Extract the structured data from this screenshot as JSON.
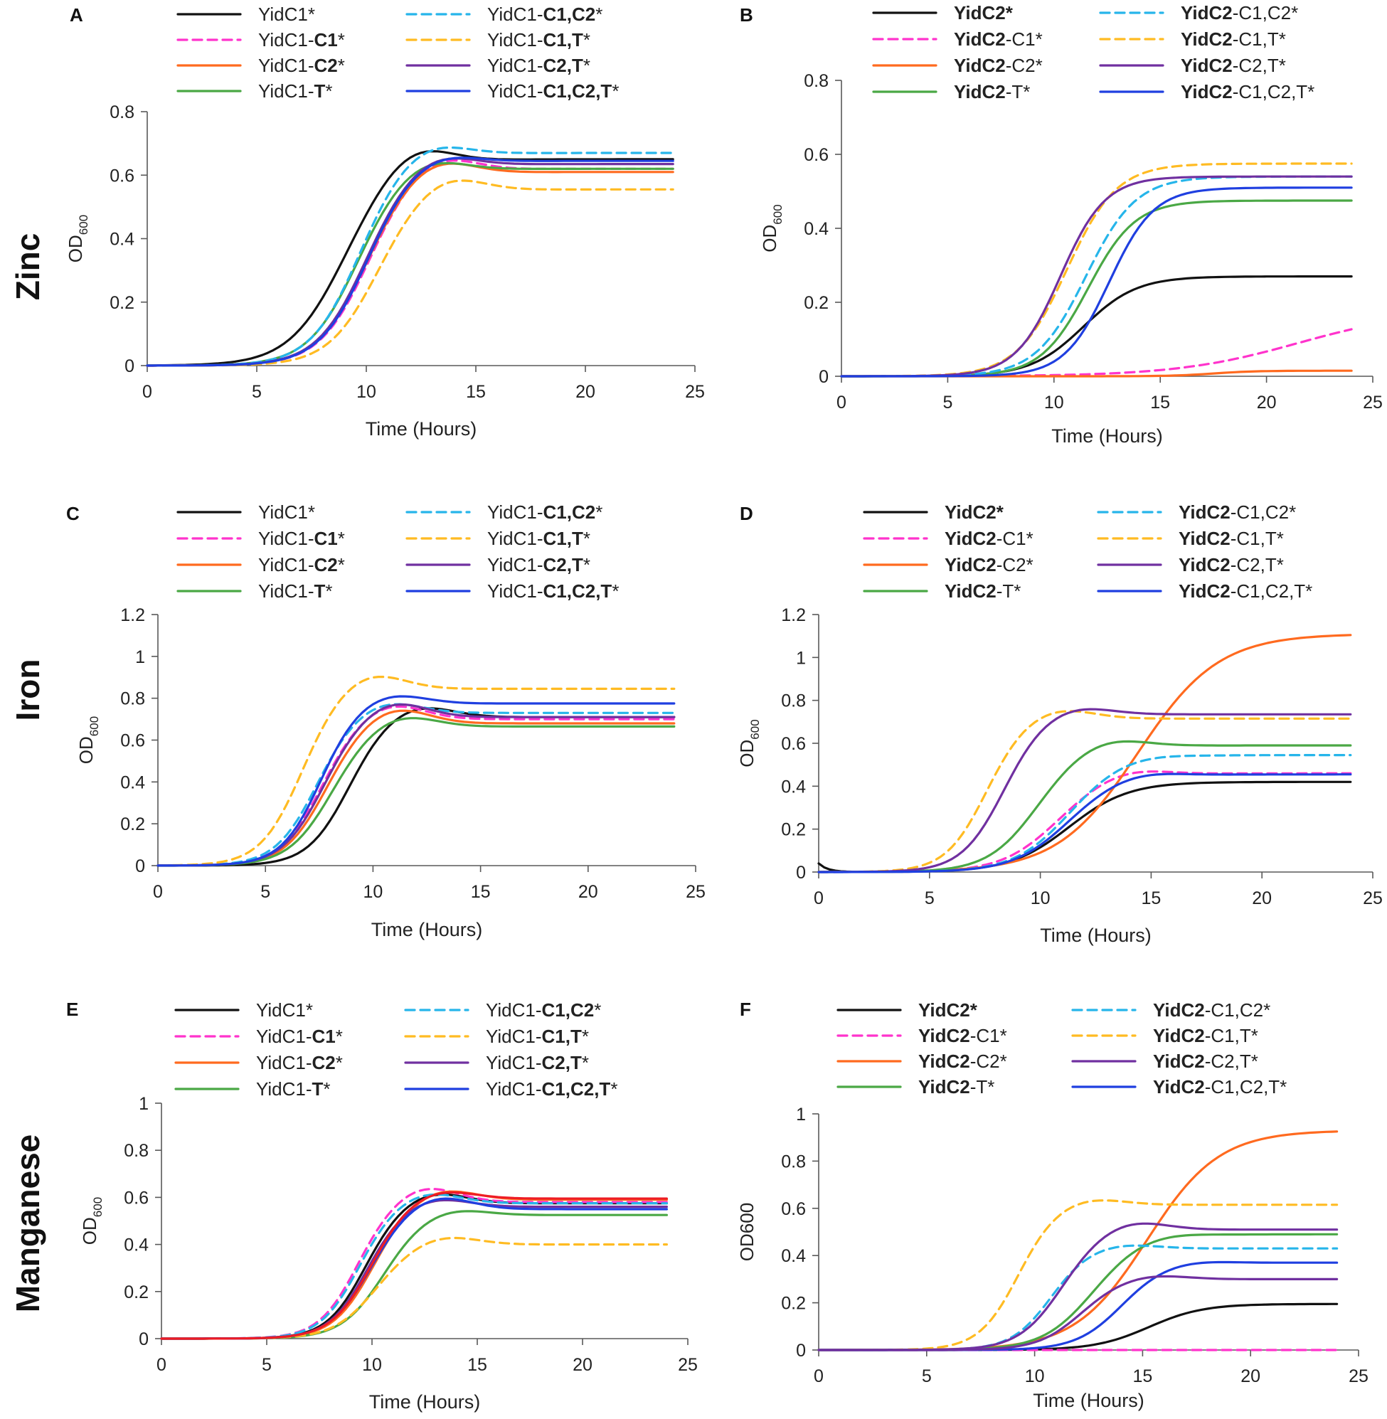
{
  "colors": {
    "black": "#111111",
    "magenta": "#ff33cc",
    "orange": "#ff6a1f",
    "green": "#4aa845",
    "cyan": "#26b5ea",
    "yellow": "#ffbb22",
    "purple": "#7030a0",
    "blue": "#1f3fe0",
    "red": "#ee1c25"
  },
  "rows": [
    {
      "label": "Zinc"
    },
    {
      "label": "Iron"
    },
    {
      "label": "Manganese"
    }
  ],
  "chart_data": [
    {
      "panel": "A",
      "row": "Zinc",
      "type": "line",
      "xlabel": "Time  (Hours)",
      "ylabel": "OD",
      "ylabel_sub": "600",
      "xlim": [
        0,
        25
      ],
      "ylim": [
        0,
        0.8
      ],
      "xticks": [
        0,
        5,
        10,
        15,
        20,
        25
      ],
      "yticks": [
        0,
        0.2,
        0.4,
        0.6,
        0.8
      ],
      "series": [
        {
          "name": "YidC1*",
          "pre": "YidC1*",
          "bold": "",
          "post": "",
          "color": "black",
          "dashed": false,
          "L": 0.65,
          "k": 0.8,
          "t0": 8.9,
          "peak": 0.06,
          "drift": 0
        },
        {
          "name": "YidC1-C1*",
          "pre": "YidC1-",
          "bold": "C1",
          "post": "*",
          "color": "magenta",
          "dashed": true,
          "L": 0.62,
          "k": 0.9,
          "t0": 10.0,
          "peak": 0.05,
          "drift": 0
        },
        {
          "name": "YidC1-C2*",
          "pre": "YidC1-",
          "bold": "C2",
          "post": "*",
          "color": "orange",
          "dashed": false,
          "L": 0.61,
          "k": 0.9,
          "t0": 9.9,
          "peak": 0.05,
          "drift": 0
        },
        {
          "name": "YidC1-T*",
          "pre": "YidC1-",
          "bold": "T",
          "post": "*",
          "color": "green",
          "dashed": false,
          "L": 0.62,
          "k": 0.9,
          "t0": 9.5,
          "peak": 0.04,
          "drift": 0
        },
        {
          "name": "YidC1-C1,C2*",
          "pre": "YidC1-",
          "bold": "C1,C2",
          "post": "*",
          "color": "cyan",
          "dashed": true,
          "L": 0.67,
          "k": 0.9,
          "t0": 9.6,
          "peak": 0.04,
          "drift": 0
        },
        {
          "name": "YidC1-C1,T*",
          "pre": "YidC1-",
          "bold": "C1,T",
          "post": "*",
          "color": "yellow",
          "dashed": true,
          "L": 0.555,
          "k": 0.9,
          "t0": 10.4,
          "peak": 0.05,
          "drift": 0
        },
        {
          "name": "YidC1-C2,T*",
          "pre": "YidC1-",
          "bold": "C2,T",
          "post": "*",
          "color": "purple",
          "dashed": false,
          "L": 0.635,
          "k": 0.9,
          "t0": 9.9,
          "peak": 0.04,
          "drift": 0
        },
        {
          "name": "YidC1-C1,C2,T*",
          "pre": "YidC1-",
          "bold": "C1,C2,T",
          "post": "*",
          "color": "blue",
          "dashed": false,
          "L": 0.645,
          "k": 0.9,
          "t0": 10.0,
          "peak": 0.03,
          "drift": 0
        }
      ]
    },
    {
      "panel": "B",
      "row": "Zinc",
      "type": "line",
      "xlabel": "Time  (Hours)",
      "ylabel": "OD",
      "ylabel_sub": "600",
      "xlim": [
        0,
        25
      ],
      "ylim": [
        0,
        0.8
      ],
      "xticks": [
        0,
        5,
        10,
        15,
        20,
        25
      ],
      "yticks": [
        0,
        0.2,
        0.4,
        0.6,
        0.8
      ],
      "series": [
        {
          "name": "YidC2*",
          "pre": "",
          "bold": "YidC2*",
          "post": "",
          "color": "black",
          "dashed": false,
          "L": 0.27,
          "k": 0.8,
          "t0": 11.4,
          "peak": 0,
          "drift": 0
        },
        {
          "name": "YidC2-C1*",
          "pre": "",
          "bold": "YidC2",
          "post": "-C1*",
          "color": "magenta",
          "dashed": true,
          "L": 0.18,
          "k": 0.35,
          "t0": 21.5,
          "peak": 0,
          "drift": 0
        },
        {
          "name": "YidC2-C2*",
          "pre": "",
          "bold": "YidC2",
          "post": "-C2*",
          "color": "orange",
          "dashed": false,
          "L": 0.015,
          "k": 1.0,
          "t0": 17.5,
          "peak": 0,
          "drift": 0
        },
        {
          "name": "YidC2-T*",
          "pre": "",
          "bold": "YidC2",
          "post": "-T*",
          "color": "green",
          "dashed": false,
          "L": 0.475,
          "k": 0.9,
          "t0": 11.6,
          "peak": 0,
          "drift": 0
        },
        {
          "name": "YidC2-C1,C2*",
          "pre": "",
          "bold": "YidC2",
          "post": "-C1,C2*",
          "color": "cyan",
          "dashed": true,
          "L": 0.54,
          "k": 0.85,
          "t0": 11.5,
          "peak": 0,
          "drift": 0
        },
        {
          "name": "YidC2-C1,T*",
          "pre": "",
          "bold": "YidC2",
          "post": "-C1,T*",
          "color": "yellow",
          "dashed": true,
          "L": 0.575,
          "k": 0.85,
          "t0": 10.6,
          "peak": 0,
          "drift": 0
        },
        {
          "name": "YidC2-C2,T*",
          "pre": "",
          "bold": "YidC2",
          "post": "-C2,T*",
          "color": "purple",
          "dashed": false,
          "L": 0.54,
          "k": 0.95,
          "t0": 10.3,
          "peak": 0,
          "drift": 0
        },
        {
          "name": "YidC2-C1,C2,T*",
          "pre": "",
          "bold": "YidC2",
          "post": "-C1,C2,T*",
          "color": "blue",
          "dashed": false,
          "L": 0.51,
          "k": 0.95,
          "t0": 12.6,
          "peak": 0,
          "drift": 0
        }
      ]
    },
    {
      "panel": "C",
      "row": "Iron",
      "type": "line",
      "xlabel": "Time  (Hours)",
      "ylabel": "OD",
      "ylabel_sub": "600",
      "xlim": [
        0,
        25
      ],
      "ylim": [
        0,
        1.2
      ],
      "xticks": [
        0,
        5,
        10,
        15,
        20,
        25
      ],
      "yticks": [
        0,
        0.2,
        0.4,
        0.6,
        0.8,
        1,
        1.2
      ],
      "series": [
        {
          "name": "YidC1*",
          "pre": "YidC1*",
          "bold": "",
          "post": "",
          "color": "black",
          "dashed": false,
          "L": 0.71,
          "k": 1.05,
          "t0": 8.8,
          "peak": 0.06,
          "drift": 0
        },
        {
          "name": "YidC1-C1*",
          "pre": "YidC1-",
          "bold": "C1",
          "post": "*",
          "color": "magenta",
          "dashed": true,
          "L": 0.7,
          "k": 1.05,
          "t0": 7.5,
          "peak": 0.08,
          "drift": 0
        },
        {
          "name": "YidC1-C2*",
          "pre": "YidC1-",
          "bold": "C2",
          "post": "*",
          "color": "orange",
          "dashed": false,
          "L": 0.68,
          "k": 1.05,
          "t0": 7.7,
          "peak": 0.08,
          "drift": 0
        },
        {
          "name": "YidC1-T*",
          "pre": "YidC1-",
          "bold": "T",
          "post": "*",
          "color": "green",
          "dashed": false,
          "L": 0.665,
          "k": 1.0,
          "t0": 8.0,
          "peak": 0.06,
          "drift": 0
        },
        {
          "name": "YidC1-C1,C2*",
          "pre": "YidC1-",
          "bold": "C1,C2",
          "post": "*",
          "color": "cyan",
          "dashed": true,
          "L": 0.73,
          "k": 1.05,
          "t0": 7.3,
          "peak": 0.06,
          "drift": 0
        },
        {
          "name": "YidC1-C1,T*",
          "pre": "YidC1-",
          "bold": "C1,T",
          "post": "*",
          "color": "yellow",
          "dashed": true,
          "L": 0.845,
          "k": 1.05,
          "t0": 6.6,
          "peak": 0.08,
          "drift": 0
        },
        {
          "name": "YidC1-C2,T*",
          "pre": "YidC1-",
          "bold": "C2,T",
          "post": "*",
          "color": "purple",
          "dashed": false,
          "L": 0.71,
          "k": 1.05,
          "t0": 7.6,
          "peak": 0.08,
          "drift": 0
        },
        {
          "name": "YidC1-C1,C2,T*",
          "pre": "YidC1-",
          "bold": "C1,C2,T",
          "post": "*",
          "color": "blue",
          "dashed": false,
          "L": 0.775,
          "k": 1.1,
          "t0": 7.5,
          "peak": 0.05,
          "drift": 0
        }
      ]
    },
    {
      "panel": "D",
      "row": "Iron",
      "type": "line",
      "xlabel": "Time  (Hours)",
      "ylabel": "OD",
      "ylabel_sub": "600",
      "xlim": [
        0,
        25
      ],
      "ylim": [
        0,
        1.2
      ],
      "xticks": [
        0,
        5,
        10,
        15,
        20,
        25
      ],
      "yticks": [
        0,
        0.2,
        0.4,
        0.6,
        0.8,
        1,
        1.2
      ],
      "series": [
        {
          "name": "YidC2*",
          "pre": "",
          "bold": "YidC2*",
          "post": "",
          "color": "black",
          "dashed": false,
          "L": 0.42,
          "k": 0.75,
          "t0": 11.3,
          "peak": 0,
          "drift": 0,
          "start": 0.04
        },
        {
          "name": "YidC2-C1*",
          "pre": "",
          "bold": "YidC2",
          "post": "-C1*",
          "color": "magenta",
          "dashed": true,
          "L": 0.46,
          "k": 0.8,
          "t0": 10.7,
          "peak": 0.03,
          "drift": 0
        },
        {
          "name": "YidC2-C2*",
          "pre": "",
          "bold": "YidC2",
          "post": "-C2*",
          "color": "orange",
          "dashed": false,
          "L": 1.11,
          "k": 0.55,
          "t0": 14.4,
          "peak": 0,
          "drift": 0
        },
        {
          "name": "YidC2-T*",
          "pre": "",
          "bold": "YidC2",
          "post": "-T*",
          "color": "green",
          "dashed": false,
          "L": 0.59,
          "k": 0.9,
          "t0": 9.8,
          "peak": 0.04,
          "drift": 0
        },
        {
          "name": "YidC2-C1,C2*",
          "pre": "",
          "bold": "YidC2",
          "post": "-C1,C2*",
          "color": "cyan",
          "dashed": true,
          "L": 0.545,
          "k": 0.8,
          "t0": 11.3,
          "peak": 0.01,
          "drift": 0
        },
        {
          "name": "YidC2-C1,T*",
          "pre": "",
          "bold": "YidC2",
          "post": "-C1,T*",
          "color": "yellow",
          "dashed": true,
          "L": 0.715,
          "k": 1.1,
          "t0": 7.5,
          "peak": 0.05,
          "drift": 0
        },
        {
          "name": "YidC2-C2,T*",
          "pre": "",
          "bold": "YidC2",
          "post": "-C2,T*",
          "color": "purple",
          "dashed": false,
          "L": 0.735,
          "k": 1.05,
          "t0": 8.3,
          "peak": 0.04,
          "drift": 0
        },
        {
          "name": "YidC2-C1,C2,T*",
          "pre": "",
          "bold": "YidC2",
          "post": "-C1,C2,T*",
          "color": "blue",
          "dashed": false,
          "L": 0.455,
          "k": 0.8,
          "t0": 11.2,
          "peak": 0.02,
          "drift": 0
        }
      ]
    },
    {
      "panel": "E",
      "row": "Manganese",
      "type": "line",
      "xlabel": "Time  (Hours)",
      "ylabel": "OD",
      "ylabel_sub": "600",
      "xlim": [
        0,
        25
      ],
      "ylim": [
        0,
        1
      ],
      "xticks": [
        0,
        5,
        10,
        15,
        20,
        25
      ],
      "yticks": [
        0,
        0.2,
        0.4,
        0.6,
        0.8,
        1
      ],
      "series": [
        {
          "name": "YidC1*",
          "pre": "YidC1*",
          "bold": "",
          "post": "",
          "color": "black",
          "dashed": false,
          "L": 0.575,
          "k": 1.1,
          "t0": 9.6,
          "peak": 0.05,
          "drift": 0
        },
        {
          "name": "YidC1-C1*",
          "pre": "YidC1-",
          "bold": "C1",
          "post": "*",
          "color": "magenta",
          "dashed": true,
          "L": 0.58,
          "k": 1.1,
          "t0": 9.2,
          "peak": 0.07,
          "drift": 0
        },
        {
          "name": "YidC1-C2*",
          "pre": "YidC1-",
          "bold": "C2",
          "post": "*",
          "color": "orange",
          "dashed": false,
          "L": 0.59,
          "k": 1.05,
          "t0": 10.0,
          "peak": 0.05,
          "drift": 0
        },
        {
          "name": "YidC1-T*",
          "pre": "YidC1-",
          "bold": "T",
          "post": "*",
          "color": "green",
          "dashed": false,
          "L": 0.525,
          "k": 1.0,
          "t0": 10.5,
          "peak": 0.03,
          "drift": 0
        },
        {
          "name": "YidC1-C1,C2*",
          "pre": "YidC1-",
          "bold": "C1,C2",
          "post": "*",
          "color": "cyan",
          "dashed": true,
          "L": 0.575,
          "k": 1.1,
          "t0": 9.3,
          "peak": 0.05,
          "drift": 0
        },
        {
          "name": "YidC1-C1,T*",
          "pre": "YidC1-",
          "bold": "C1,T",
          "post": "*",
          "color": "yellow",
          "dashed": true,
          "L": 0.4,
          "k": 1.0,
          "t0": 10.1,
          "peak": 0.04,
          "drift": 0
        },
        {
          "name": "YidC1-C2,T*",
          "pre": "YidC1-",
          "bold": "C2,T",
          "post": "*",
          "color": "purple",
          "dashed": false,
          "L": 0.56,
          "k": 1.1,
          "t0": 9.7,
          "peak": 0.04,
          "drift": 0
        },
        {
          "name": "YidC1-C1,C2,T*",
          "pre": "YidC1-",
          "bold": "C1,C2,T",
          "post": "*",
          "color": "blue",
          "dashed": false,
          "L": 0.55,
          "k": 1.05,
          "t0": 9.8,
          "peak": 0.06,
          "drift": 0
        },
        {
          "name": "",
          "legend": false,
          "color": "red",
          "dashed": false,
          "L": 0.595,
          "k": 1.05,
          "t0": 9.9,
          "peak": 0.04,
          "drift": 0
        }
      ]
    },
    {
      "panel": "F",
      "row": "Manganese",
      "type": "line",
      "xlabel": "Time  (Hours)",
      "ylabel": "OD600",
      "ylabel_sub": "",
      "xlim": [
        0,
        25
      ],
      "ylim": [
        0,
        1
      ],
      "xticks": [
        0,
        5,
        10,
        15,
        20,
        25
      ],
      "yticks": [
        0,
        0.2,
        0.4,
        0.6,
        0.8,
        1
      ],
      "series": [
        {
          "name": "YidC2*",
          "pre": "",
          "bold": "YidC2*",
          "post": "",
          "color": "black",
          "dashed": false,
          "L": 0.195,
          "k": 0.8,
          "t0": 15.3,
          "peak": 0,
          "drift": 0
        },
        {
          "name": "YidC2-C1*",
          "pre": "",
          "bold": "YidC2",
          "post": "-C1*",
          "color": "magenta",
          "dashed": true,
          "L": 0.0,
          "k": 1,
          "t0": 30,
          "peak": 0,
          "drift": 0
        },
        {
          "name": "YidC2-C2*",
          "pre": "",
          "bold": "YidC2",
          "post": "-C2*",
          "color": "orange",
          "dashed": false,
          "L": 0.93,
          "k": 0.6,
          "t0": 15.2,
          "peak": 0,
          "drift": 0
        },
        {
          "name": "YidC2-T*",
          "pre": "",
          "bold": "YidC2",
          "post": "-T*",
          "color": "green",
          "dashed": false,
          "L": 0.49,
          "k": 0.85,
          "t0": 12.7,
          "peak": 0.01,
          "drift": 0
        },
        {
          "name": "YidC2-C1,C2*",
          "pre": "",
          "bold": "YidC2",
          "post": "-C1,C2*",
          "color": "cyan",
          "dashed": true,
          "L": 0.43,
          "k": 1.1,
          "t0": 10.7,
          "peak": 0.02,
          "drift": 0
        },
        {
          "name": "YidC2-C1,T*",
          "pre": "",
          "bold": "YidC2",
          "post": "-C1,T*",
          "color": "yellow",
          "dashed": true,
          "L": 0.615,
          "k": 1.1,
          "t0": 9.2,
          "peak": 0.03,
          "drift": 0
        },
        {
          "name": "YidC2-C2,T*",
          "pre": "",
          "bold": "YidC2",
          "post": "-C2,T*",
          "color": "purple",
          "dashed": false,
          "L": 0.51,
          "k": 1.0,
          "t0": 11.2,
          "peak": 0.04,
          "drift": 0
        },
        {
          "name": "YidC2-C1,C2,T*",
          "pre": "",
          "bold": "YidC2",
          "post": "-C1,C2,T*",
          "color": "blue",
          "dashed": false,
          "L": 0.37,
          "k": 0.95,
          "t0": 14.0,
          "peak": 0.01,
          "drift": 0
        },
        {
          "name": "",
          "legend": false,
          "color": "purple",
          "dashed": false,
          "L": 0.3,
          "k": 1.0,
          "t0": 12.1,
          "peak": 0.02,
          "drift": 0
        }
      ]
    }
  ]
}
